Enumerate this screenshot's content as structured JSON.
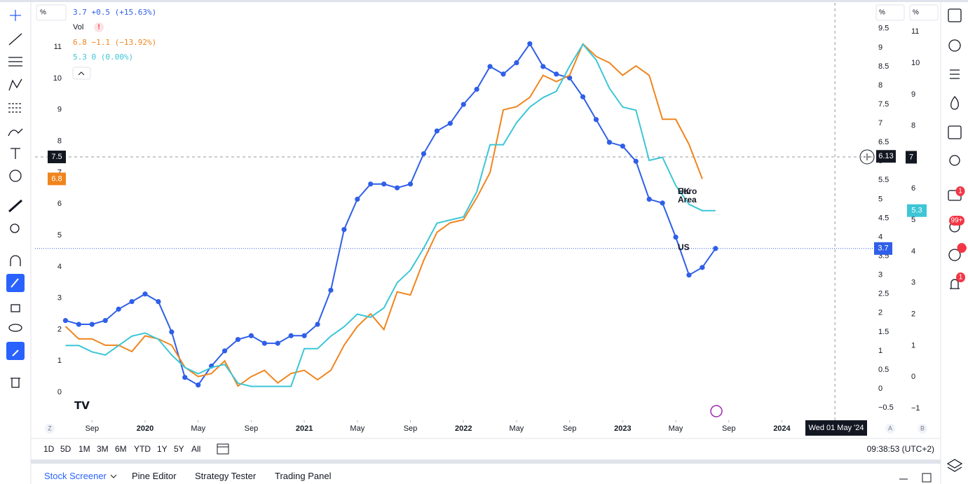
{
  "legend": {
    "unit": "%",
    "vol": "Vol",
    "vol_icon": "!",
    "items": [
      {
        "change": "+0.5 (+15.63%)"
      },
      {
        "change": "−1.1 (−13.92%)"
      },
      {
        "change": "0 (0.00%)"
      }
    ]
  },
  "chart_data": {
    "type": "line",
    "x": [
      "2019-07",
      "2019-08",
      "2019-09",
      "2019-10",
      "2019-11",
      "2019-12",
      "2020-01",
      "2020-02",
      "2020-03",
      "2020-04",
      "2020-05",
      "2020-06",
      "2020-07",
      "2020-08",
      "2020-09",
      "2020-10",
      "2020-11",
      "2020-12",
      "2021-01",
      "2021-02",
      "2021-03",
      "2021-04",
      "2021-05",
      "2021-06",
      "2021-07",
      "2021-08",
      "2021-09",
      "2021-10",
      "2021-11",
      "2021-12",
      "2022-01",
      "2022-02",
      "2022-03",
      "2022-04",
      "2022-05",
      "2022-06",
      "2022-07",
      "2022-08",
      "2022-09",
      "2022-10",
      "2022-11",
      "2022-12",
      "2023-01",
      "2023-02",
      "2023-03",
      "2023-04",
      "2023-05",
      "2023-06",
      "2023-07",
      "2023-08"
    ],
    "series": [
      {
        "name": "US",
        "color": "#2f5fe8",
        "axis": "y2",
        "markers": true,
        "values": [
          1.8,
          1.7,
          1.7,
          1.8,
          2.1,
          2.3,
          2.5,
          2.3,
          1.5,
          0.3,
          0.1,
          0.6,
          1.0,
          1.3,
          1.4,
          1.2,
          1.2,
          1.4,
          1.4,
          1.7,
          2.6,
          4.2,
          5.0,
          5.4,
          5.4,
          5.3,
          5.4,
          6.2,
          6.8,
          7.0,
          7.5,
          7.9,
          8.5,
          8.3,
          8.6,
          9.1,
          8.5,
          8.3,
          8.2,
          7.7,
          7.1,
          6.5,
          6.4,
          6.0,
          5.0,
          4.9,
          4.0,
          3.0,
          3.2,
          3.7
        ]
      },
      {
        "name": "UK",
        "color": "#f0851e",
        "axis": "y",
        "markers": false,
        "values": [
          2.1,
          1.7,
          1.7,
          1.5,
          1.5,
          1.3,
          1.8,
          1.7,
          1.5,
          0.8,
          0.5,
          0.6,
          1.0,
          0.2,
          0.5,
          0.7,
          0.3,
          0.6,
          0.7,
          0.4,
          0.7,
          1.5,
          2.1,
          2.5,
          2.0,
          3.2,
          3.1,
          4.2,
          5.1,
          5.4,
          5.5,
          6.2,
          7.0,
          9.0,
          9.1,
          9.4,
          10.1,
          9.9,
          10.1,
          11.1,
          10.7,
          10.5,
          10.1,
          10.4,
          10.1,
          8.7,
          8.7,
          7.9,
          6.8,
          null
        ]
      },
      {
        "name": "Euro Area",
        "color": "#3cc6d6",
        "axis": "y3",
        "markers": false,
        "values": [
          1.0,
          1.0,
          0.8,
          0.7,
          1.0,
          1.3,
          1.4,
          1.2,
          0.7,
          0.3,
          0.1,
          0.3,
          0.4,
          -0.2,
          -0.3,
          -0.3,
          -0.3,
          -0.3,
          0.9,
          0.9,
          1.3,
          1.6,
          2.0,
          1.9,
          2.2,
          3.0,
          3.4,
          4.1,
          4.9,
          5.0,
          5.1,
          5.9,
          7.4,
          7.4,
          8.1,
          8.6,
          8.9,
          9.1,
          9.9,
          10.6,
          10.1,
          9.2,
          8.6,
          8.5,
          6.9,
          7.0,
          6.1,
          5.5,
          5.3,
          5.3
        ]
      }
    ],
    "xlim": [
      "2019-05",
      "2024-07"
    ],
    "xticks": [
      {
        "value": "2019-09",
        "label": "Sep"
      },
      {
        "value": "2020-01",
        "label": "2020"
      },
      {
        "value": "2020-05",
        "label": "May"
      },
      {
        "value": "2020-09",
        "label": "Sep"
      },
      {
        "value": "2021-01",
        "label": "2021"
      },
      {
        "value": "2021-05",
        "label": "May"
      },
      {
        "value": "2021-09",
        "label": "Sep"
      },
      {
        "value": "2022-01",
        "label": "2022"
      },
      {
        "value": "2022-05",
        "label": "May"
      },
      {
        "value": "2022-09",
        "label": "Sep"
      },
      {
        "value": "2023-01",
        "label": "2023"
      },
      {
        "value": "2023-05",
        "label": "May"
      },
      {
        "value": "2023-09",
        "label": "Sep"
      },
      {
        "value": "2024-01",
        "label": "2024"
      }
    ],
    "ylim": [
      -0.89,
      12.41
    ],
    "yticks": [
      0,
      1,
      2,
      3,
      4,
      5,
      6,
      7,
      8,
      9,
      10,
      11
    ],
    "y2lim": [
      -0.83,
      10.18
    ],
    "y2ticks": [
      {
        "value": -0.5,
        "label": "−0.5"
      },
      0,
      0.5,
      1,
      1.5,
      2,
      2.5,
      3,
      3.5,
      4,
      4.5,
      5,
      5.5,
      6,
      6.5,
      7,
      7.5,
      8,
      8.5,
      9,
      9.5
    ],
    "y3lim": [
      -1.38,
      11.92
    ],
    "y3ticks": [
      {
        "value": -1,
        "label": "−1"
      },
      0,
      1,
      2,
      3,
      4,
      5,
      6,
      7,
      8,
      9,
      10,
      11
    ],
    "crosshair": {
      "x": "2024-05-01",
      "x_label": "Wed 01 May '24",
      "y": 7.5,
      "y2": 6.13,
      "y3": 7
    }
  },
  "toolbar": {
    "ranges": [
      "1D",
      "5D",
      "1M",
      "3M",
      "6M",
      "YTD",
      "1Y",
      "5Y",
      "All"
    ],
    "clock": "09:38:53 (UTC+2)",
    "scale_buttons": [
      "Z",
      "A",
      "B"
    ]
  },
  "bottom_tabs": [
    "Stock Screener",
    "Pine Editor",
    "Strategy Tester",
    "Trading Panel"
  ],
  "sidebar_badges": [
    "1",
    "99+",
    "1"
  ]
}
